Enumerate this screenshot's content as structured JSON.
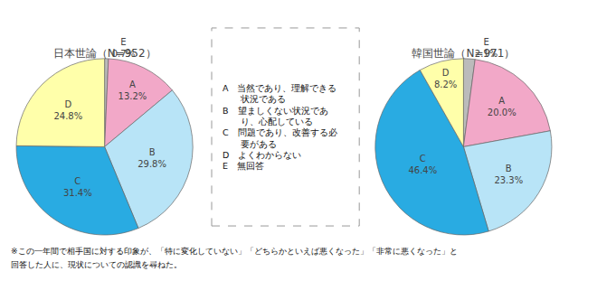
{
  "chart_data": [
    {
      "type": "pie",
      "title": "日本世論（N=952）",
      "categories": [
        "E",
        "A",
        "B",
        "C",
        "D"
      ],
      "values": [
        0.7,
        13.2,
        29.8,
        31.4,
        24.8
      ],
      "value_labels": [
        "E\n0.7%",
        "A\n13.2%",
        "B\n29.8%",
        "C\n31.4%",
        "D\n24.8%"
      ],
      "colors": [
        "#BBBBBB",
        "#F2A8C8",
        "#B8E4F7",
        "#29ABE2",
        "#FFFFAA"
      ],
      "data_labels": true,
      "annotations": [
        "A　当然であり、理解できる",
        "　　状況である",
        "B　望ましくない状況であ",
        "　　り、心配している",
        "C　問題であり、改善する必",
        "　　要がある",
        "D　よくわからない",
        "E　無回答"
      ],
      "footnote": [
        "※この一年間で相手国に対する印象が、「特に変化していない」「どちらかといえば悪くなった」「非常に悪くなった」と",
        "回答した人に、現状についての認識を尋ねた。"
      ]
    },
    {
      "type": "pie",
      "title": "韓国世論（N=971）",
      "categories": [
        "E",
        "A",
        "B",
        "C",
        "D"
      ],
      "values": [
        2.1,
        20.0,
        23.3,
        46.4,
        8.2
      ],
      "value_labels": [
        "E\n2.1%",
        "A\n20.0%",
        "B\n23.3%",
        "C\n46.4%",
        "D\n8.2%"
      ],
      "colors": [
        "#BBBBBB",
        "#F2A8C8",
        "#B8E4F7",
        "#29ABE2",
        "#FFFFAA"
      ],
      "data_labels": true
    }
  ]
}
